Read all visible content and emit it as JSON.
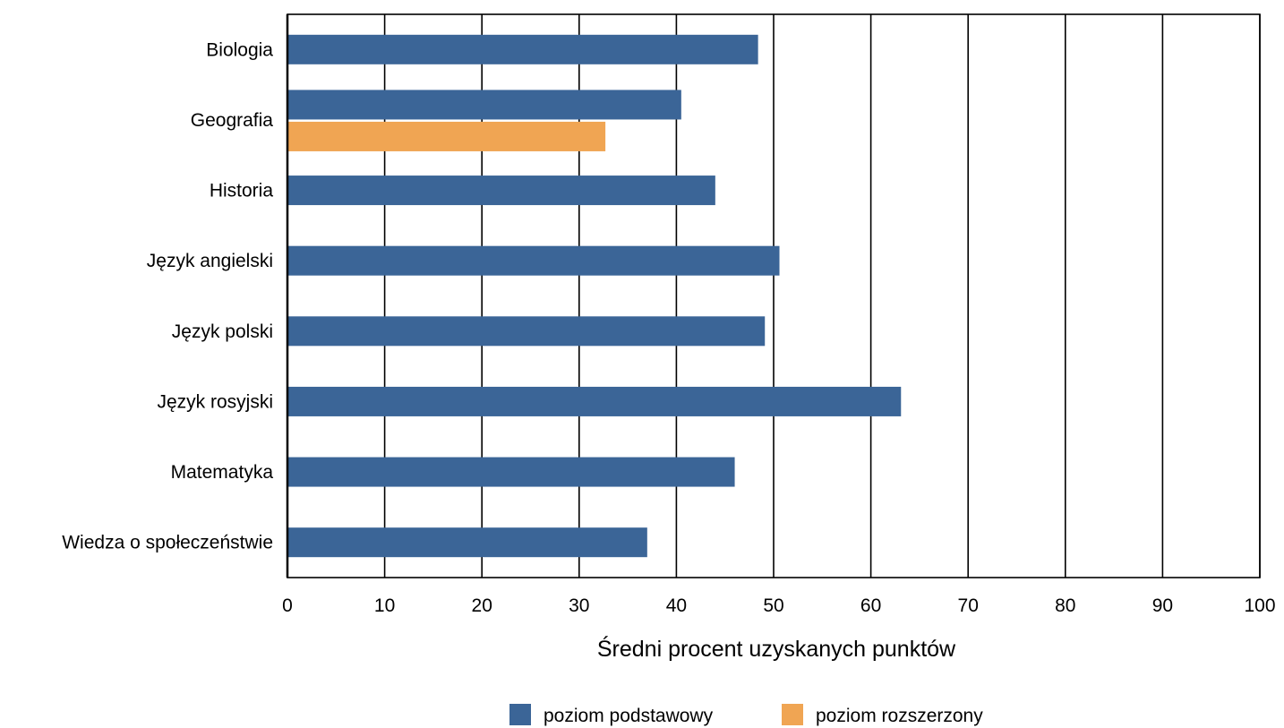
{
  "chart_data": {
    "type": "bar",
    "orientation": "horizontal",
    "categories": [
      "Biologia",
      "Geografia",
      "Historia",
      "Język angielski",
      "Język polski",
      "Język rosyjski",
      "Matematyka",
      "Wiedza o społeczeństwie"
    ],
    "series": [
      {
        "name": "poziom podstawowy",
        "color": "#3b6597",
        "values": [
          48.4,
          40.5,
          44.0,
          50.6,
          49.1,
          63.1,
          46.0,
          37.0
        ]
      },
      {
        "name": "poziom rozszerzony",
        "color": "#f0a553",
        "values": [
          null,
          32.7,
          null,
          null,
          null,
          null,
          null,
          null
        ]
      }
    ],
    "xlabel": "Średni procent uzyskanych punktów",
    "ylabel": "",
    "xlim": [
      0,
      100
    ],
    "xticks": [
      "0",
      "10",
      "20",
      "30",
      "40",
      "50",
      "60",
      "70",
      "80",
      "90",
      "100"
    ],
    "grid": "vertical",
    "legend_position": "bottom"
  }
}
